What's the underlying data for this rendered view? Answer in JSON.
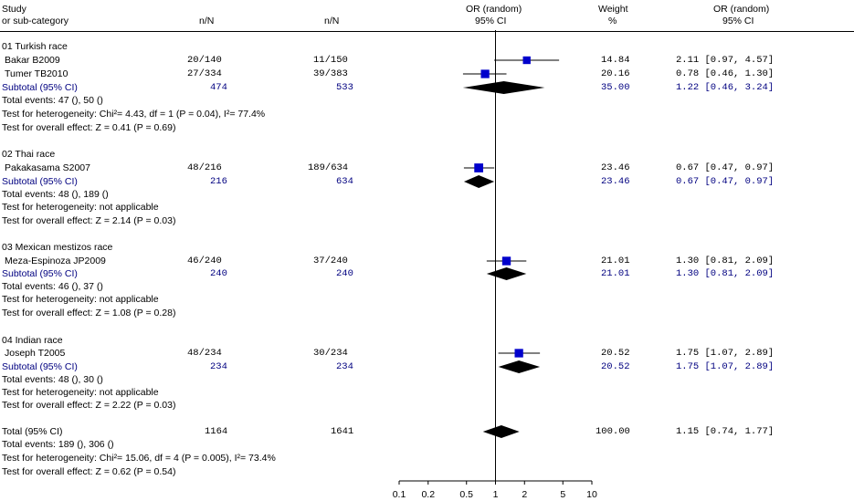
{
  "header": {
    "study_line1": "Study",
    "study_line2": "or sub-category",
    "col_exp": "n/N",
    "col_ctrl": "n/N",
    "or_line1": "OR (random)",
    "or_line2": "95% CI",
    "weight_line1": "Weight",
    "weight_line2": "%",
    "orci_line1": "OR (random)",
    "orci_line2": "95% CI"
  },
  "groups": [
    {
      "title": "01 Turkish race",
      "studies": [
        {
          "name": "Bakar B2009",
          "exp": "20/140",
          "ctrl": "11/150",
          "weight": "14.84",
          "ci": "2.11 [0.97, 4.57]"
        },
        {
          "name": "Tumer TB2010",
          "exp": "27/334",
          "ctrl": "39/383",
          "weight": "20.16",
          "ci": "0.78 [0.46, 1.30]"
        }
      ],
      "subtotal": {
        "label": "Subtotal (95% CI)",
        "exp": "474",
        "ctrl": "533",
        "weight": "35.00",
        "ci": "1.22 [0.46, 3.24]"
      },
      "events": "Total events: 47 (), 50 ()",
      "heterogeneity": "Test for heterogeneity: Chi²= 4.43, df = 1 (P = 0.04), I²= 77.4%",
      "overall": "Test for overall effect: Z = 0.41 (P = 0.69)"
    },
    {
      "title": "02 Thai race",
      "studies": [
        {
          "name": "Pakakasama S2007",
          "exp": "48/216",
          "ctrl": "189/634",
          "weight": "23.46",
          "ci": "0.67 [0.47, 0.97]"
        }
      ],
      "subtotal": {
        "label": "Subtotal (95% CI)",
        "exp": "216",
        "ctrl": "634",
        "weight": "23.46",
        "ci": "0.67 [0.47, 0.97]"
      },
      "events": "Total events: 48 (), 189 ()",
      "heterogeneity": "Test for heterogeneity: not applicable",
      "overall": "Test for overall effect: Z = 2.14 (P = 0.03)"
    },
    {
      "title": "03 Mexican mestizos race",
      "studies": [
        {
          "name": "Meza-Espinoza JP2009",
          "exp": "46/240",
          "ctrl": "37/240",
          "weight": "21.01",
          "ci": "1.30 [0.81, 2.09]"
        }
      ],
      "subtotal": {
        "label": "Subtotal (95% CI)",
        "exp": "240",
        "ctrl": "240",
        "weight": "21.01",
        "ci": "1.30 [0.81, 2.09]"
      },
      "events": "Total events: 46 (), 37 ()",
      "heterogeneity": "Test for heterogeneity: not applicable",
      "overall": "Test for overall effect: Z = 1.08 (P = 0.28)"
    },
    {
      "title": "04 Indian race",
      "studies": [
        {
          "name": "Joseph T2005",
          "exp": "48/234",
          "ctrl": "30/234",
          "weight": "20.52",
          "ci": "1.75 [1.07, 2.89]"
        }
      ],
      "subtotal": {
        "label": "Subtotal (95% CI)",
        "exp": "234",
        "ctrl": "234",
        "weight": "20.52",
        "ci": "1.75 [1.07, 2.89]"
      },
      "events": "Total events: 48 (), 30 ()",
      "heterogeneity": "Test for heterogeneity: not applicable",
      "overall": "Test for overall effect: Z = 2.22 (P = 0.03)"
    }
  ],
  "total": {
    "label": "Total (95% CI)",
    "exp": "1164",
    "ctrl": "1641",
    "weight": "100.00",
    "ci": "1.15 [0.74, 1.77]",
    "events": "Total events: 189 (), 306 ()",
    "heterogeneity": "Test for heterogeneity: Chi²= 15.06, df = 4 (P = 0.005), I²= 73.4%",
    "overall": "Test for overall effect: Z = 0.62 (P = 0.54)"
  },
  "colors": {
    "marker": "#0000cc",
    "diamond": "#000000",
    "subtotal_text": "#000080"
  },
  "chart_data": {
    "type": "scatter",
    "scale": "log",
    "xlim": [
      0.1,
      10
    ],
    "ticks": [
      "0.1",
      "0.2",
      "0.5",
      "1",
      "2",
      "5",
      "10"
    ],
    "tick_values": [
      0.1,
      0.2,
      0.5,
      1,
      2,
      5,
      10
    ],
    "reference_line": 1,
    "studies": [
      {
        "name": "Bakar B2009",
        "or": 2.11,
        "lo": 0.97,
        "hi": 4.57,
        "weight": 14.84
      },
      {
        "name": "Tumer TB2010",
        "or": 0.78,
        "lo": 0.46,
        "hi": 1.3,
        "weight": 20.16
      },
      {
        "name": "Pakakasama S2007",
        "or": 0.67,
        "lo": 0.47,
        "hi": 0.97,
        "weight": 23.46
      },
      {
        "name": "Meza-Espinoza JP2009",
        "or": 1.3,
        "lo": 0.81,
        "hi": 2.09,
        "weight": 21.01
      },
      {
        "name": "Joseph T2005",
        "or": 1.75,
        "lo": 1.07,
        "hi": 2.89,
        "weight": 20.52
      }
    ],
    "diamonds": [
      {
        "name": "Subtotal Turkish",
        "or": 1.22,
        "lo": 0.46,
        "hi": 3.24
      },
      {
        "name": "Subtotal Thai",
        "or": 0.67,
        "lo": 0.47,
        "hi": 0.97
      },
      {
        "name": "Subtotal Mexican mestizos",
        "or": 1.3,
        "lo": 0.81,
        "hi": 2.09
      },
      {
        "name": "Subtotal Indian",
        "or": 1.75,
        "lo": 1.07,
        "hi": 2.89
      },
      {
        "name": "Total",
        "or": 1.15,
        "lo": 0.74,
        "hi": 1.77
      }
    ]
  }
}
